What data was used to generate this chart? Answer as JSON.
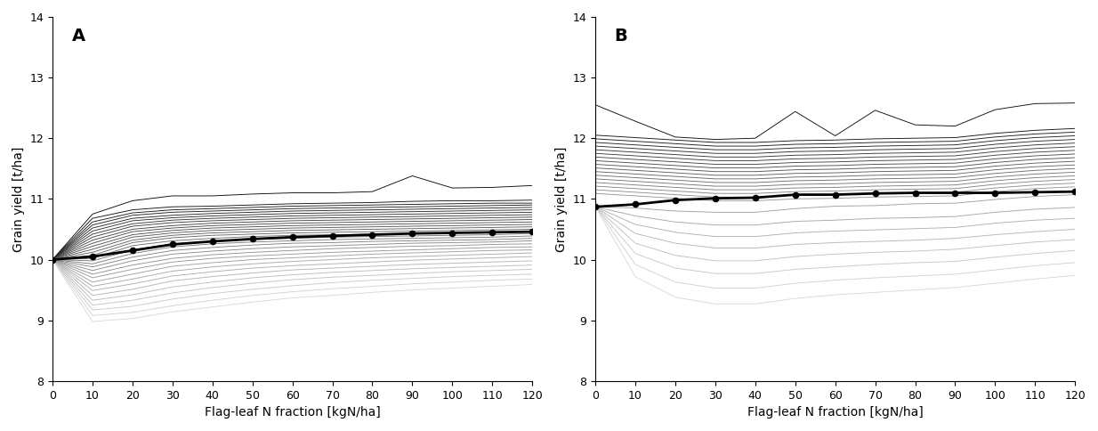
{
  "x": [
    0,
    10,
    20,
    30,
    40,
    50,
    60,
    70,
    80,
    90,
    100,
    110,
    120
  ],
  "panel_A_label": "A",
  "panel_B_label": "B",
  "xlabel": "Flag-leaf N fraction [kgN/ha]",
  "ylabel": "Grain yield [t/ha]",
  "ylim": [
    8,
    14
  ],
  "xlim": [
    0,
    120
  ],
  "yticks": [
    8,
    9,
    10,
    11,
    12,
    13,
    14
  ],
  "xticks": [
    0,
    10,
    20,
    30,
    40,
    50,
    60,
    70,
    80,
    90,
    100,
    110,
    120
  ],
  "background_color": "#ffffff",
  "panel_A_mean": [
    10.0,
    10.05,
    10.15,
    10.25,
    10.3,
    10.34,
    10.37,
    10.39,
    10.41,
    10.43,
    10.44,
    10.45,
    10.46
  ],
  "panel_A_lines": [
    [
      10.0,
      10.75,
      10.97,
      11.05,
      11.05,
      11.08,
      11.1,
      11.1,
      11.12,
      11.38,
      11.18,
      11.19,
      11.22
    ],
    [
      10.0,
      10.68,
      10.82,
      10.87,
      10.88,
      10.9,
      10.92,
      10.93,
      10.94,
      10.96,
      10.97,
      10.97,
      10.98
    ],
    [
      10.0,
      10.62,
      10.77,
      10.82,
      10.84,
      10.86,
      10.88,
      10.89,
      10.9,
      10.91,
      10.92,
      10.93,
      10.93
    ],
    [
      10.0,
      10.57,
      10.73,
      10.78,
      10.8,
      10.82,
      10.84,
      10.85,
      10.86,
      10.87,
      10.88,
      10.89,
      10.9
    ],
    [
      10.0,
      10.52,
      10.68,
      10.73,
      10.76,
      10.78,
      10.8,
      10.81,
      10.82,
      10.83,
      10.84,
      10.85,
      10.86
    ],
    [
      10.0,
      10.47,
      10.64,
      10.69,
      10.72,
      10.74,
      10.76,
      10.77,
      10.78,
      10.79,
      10.8,
      10.81,
      10.82
    ],
    [
      10.0,
      10.42,
      10.59,
      10.65,
      10.68,
      10.7,
      10.72,
      10.73,
      10.74,
      10.75,
      10.76,
      10.77,
      10.78
    ],
    [
      10.0,
      10.37,
      10.55,
      10.61,
      10.64,
      10.66,
      10.68,
      10.69,
      10.7,
      10.71,
      10.72,
      10.73,
      10.74
    ],
    [
      10.0,
      10.32,
      10.5,
      10.56,
      10.6,
      10.62,
      10.64,
      10.65,
      10.66,
      10.67,
      10.68,
      10.69,
      10.7
    ],
    [
      10.0,
      10.27,
      10.46,
      10.52,
      10.56,
      10.58,
      10.6,
      10.61,
      10.62,
      10.63,
      10.64,
      10.65,
      10.66
    ],
    [
      10.0,
      10.22,
      10.41,
      10.48,
      10.52,
      10.54,
      10.56,
      10.57,
      10.58,
      10.59,
      10.6,
      10.61,
      10.62
    ],
    [
      10.0,
      10.17,
      10.37,
      10.44,
      10.48,
      10.5,
      10.52,
      10.53,
      10.54,
      10.55,
      10.56,
      10.57,
      10.58
    ],
    [
      10.0,
      10.12,
      10.32,
      10.4,
      10.44,
      10.46,
      10.48,
      10.49,
      10.5,
      10.51,
      10.52,
      10.53,
      10.54
    ],
    [
      10.0,
      10.07,
      10.28,
      10.36,
      10.4,
      10.42,
      10.44,
      10.45,
      10.46,
      10.47,
      10.48,
      10.49,
      10.5
    ],
    [
      10.0,
      10.02,
      10.23,
      10.31,
      10.35,
      10.38,
      10.4,
      10.41,
      10.42,
      10.43,
      10.44,
      10.45,
      10.46
    ],
    [
      10.0,
      9.98,
      10.16,
      10.26,
      10.3,
      10.33,
      10.35,
      10.37,
      10.38,
      10.39,
      10.4,
      10.41,
      10.43
    ],
    [
      10.0,
      9.93,
      10.1,
      10.21,
      10.26,
      10.29,
      10.31,
      10.33,
      10.34,
      10.35,
      10.36,
      10.37,
      10.39
    ],
    [
      10.0,
      9.88,
      10.04,
      10.15,
      10.2,
      10.24,
      10.27,
      10.28,
      10.3,
      10.31,
      10.32,
      10.33,
      10.35
    ],
    [
      10.0,
      9.82,
      9.98,
      10.09,
      10.14,
      10.18,
      10.21,
      10.23,
      10.25,
      10.27,
      10.28,
      10.29,
      10.31
    ],
    [
      10.0,
      9.76,
      9.91,
      10.02,
      10.08,
      10.12,
      10.15,
      10.18,
      10.2,
      10.22,
      10.23,
      10.25,
      10.26
    ],
    [
      10.0,
      9.7,
      9.84,
      9.96,
      10.02,
      10.06,
      10.09,
      10.12,
      10.14,
      10.16,
      10.18,
      10.2,
      10.21
    ],
    [
      10.0,
      9.63,
      9.76,
      9.89,
      9.95,
      10.0,
      10.03,
      10.06,
      10.09,
      10.11,
      10.13,
      10.15,
      10.16
    ],
    [
      10.0,
      9.56,
      9.68,
      9.81,
      9.88,
      9.93,
      9.97,
      10.0,
      10.03,
      10.05,
      10.07,
      10.09,
      10.11
    ],
    [
      10.0,
      9.49,
      9.6,
      9.73,
      9.8,
      9.86,
      9.9,
      9.93,
      9.96,
      9.99,
      10.01,
      10.03,
      10.05
    ],
    [
      10.0,
      9.41,
      9.51,
      9.65,
      9.72,
      9.78,
      9.83,
      9.86,
      9.89,
      9.92,
      9.94,
      9.96,
      9.98
    ],
    [
      10.0,
      9.33,
      9.42,
      9.55,
      9.63,
      9.7,
      9.75,
      9.79,
      9.82,
      9.85,
      9.87,
      9.89,
      9.91
    ],
    [
      10.0,
      9.25,
      9.33,
      9.45,
      9.54,
      9.61,
      9.67,
      9.71,
      9.74,
      9.77,
      9.8,
      9.82,
      9.84
    ],
    [
      10.0,
      9.17,
      9.23,
      9.35,
      9.44,
      9.51,
      9.57,
      9.62,
      9.66,
      9.69,
      9.72,
      9.74,
      9.76
    ],
    [
      10.0,
      9.08,
      9.13,
      9.24,
      9.33,
      9.41,
      9.47,
      9.52,
      9.56,
      9.6,
      9.63,
      9.66,
      9.68
    ],
    [
      10.0,
      8.98,
      9.03,
      9.14,
      9.22,
      9.3,
      9.37,
      9.41,
      9.46,
      9.5,
      9.53,
      9.56,
      9.59
    ]
  ],
  "panel_B_mean": [
    10.87,
    10.91,
    10.98,
    11.01,
    11.02,
    11.07,
    11.07,
    11.09,
    11.1,
    11.1,
    11.1,
    11.11,
    11.12
  ],
  "panel_B_lines": [
    [
      12.55,
      12.28,
      12.02,
      11.98,
      12.0,
      12.44,
      12.04,
      12.46,
      12.22,
      12.2,
      12.47,
      12.57,
      12.58
    ],
    [
      12.05,
      12.01,
      11.97,
      11.93,
      11.93,
      11.96,
      11.97,
      11.99,
      12.0,
      12.01,
      12.08,
      12.13,
      12.16
    ],
    [
      11.99,
      11.95,
      11.91,
      11.87,
      11.87,
      11.9,
      11.91,
      11.93,
      11.94,
      11.95,
      12.02,
      12.07,
      12.1
    ],
    [
      11.93,
      11.89,
      11.85,
      11.81,
      11.81,
      11.84,
      11.85,
      11.87,
      11.88,
      11.89,
      11.96,
      12.01,
      12.04
    ],
    [
      11.87,
      11.83,
      11.79,
      11.75,
      11.75,
      11.78,
      11.79,
      11.81,
      11.82,
      11.83,
      11.9,
      11.95,
      11.98
    ],
    [
      11.81,
      11.77,
      11.73,
      11.69,
      11.69,
      11.72,
      11.73,
      11.75,
      11.76,
      11.77,
      11.84,
      11.89,
      11.92
    ],
    [
      11.75,
      11.71,
      11.67,
      11.63,
      11.63,
      11.66,
      11.67,
      11.69,
      11.7,
      11.71,
      11.78,
      11.83,
      11.86
    ],
    [
      11.69,
      11.65,
      11.61,
      11.57,
      11.57,
      11.6,
      11.61,
      11.63,
      11.64,
      11.65,
      11.72,
      11.77,
      11.8
    ],
    [
      11.63,
      11.59,
      11.55,
      11.51,
      11.51,
      11.54,
      11.55,
      11.57,
      11.58,
      11.59,
      11.66,
      11.71,
      11.74
    ],
    [
      11.57,
      11.53,
      11.49,
      11.45,
      11.45,
      11.48,
      11.49,
      11.51,
      11.52,
      11.53,
      11.6,
      11.65,
      11.68
    ],
    [
      11.51,
      11.47,
      11.43,
      11.39,
      11.39,
      11.42,
      11.43,
      11.45,
      11.46,
      11.47,
      11.54,
      11.59,
      11.62
    ],
    [
      11.45,
      11.41,
      11.37,
      11.33,
      11.33,
      11.36,
      11.37,
      11.39,
      11.4,
      11.41,
      11.48,
      11.53,
      11.56
    ],
    [
      11.39,
      11.35,
      11.31,
      11.27,
      11.27,
      11.3,
      11.31,
      11.33,
      11.34,
      11.35,
      11.42,
      11.47,
      11.5
    ],
    [
      11.33,
      11.29,
      11.25,
      11.21,
      11.21,
      11.24,
      11.25,
      11.27,
      11.28,
      11.29,
      11.36,
      11.41,
      11.44
    ],
    [
      11.27,
      11.23,
      11.19,
      11.15,
      11.15,
      11.18,
      11.19,
      11.21,
      11.22,
      11.23,
      11.3,
      11.35,
      11.38
    ],
    [
      11.21,
      11.17,
      11.13,
      11.09,
      11.09,
      11.12,
      11.13,
      11.15,
      11.16,
      11.17,
      11.24,
      11.29,
      11.32
    ],
    [
      11.15,
      11.11,
      11.07,
      11.03,
      11.03,
      11.06,
      11.07,
      11.09,
      11.1,
      11.11,
      11.18,
      11.23,
      11.26
    ],
    [
      11.09,
      11.05,
      11.01,
      10.97,
      10.97,
      11.0,
      11.01,
      11.03,
      11.04,
      11.05,
      11.12,
      11.17,
      11.2
    ],
    [
      10.87,
      10.85,
      10.8,
      10.78,
      10.78,
      10.84,
      10.88,
      10.89,
      10.92,
      10.93,
      10.99,
      11.04,
      11.07
    ],
    [
      10.87,
      10.72,
      10.62,
      10.57,
      10.57,
      10.63,
      10.65,
      10.68,
      10.69,
      10.71,
      10.78,
      10.83,
      10.86
    ],
    [
      10.87,
      10.58,
      10.45,
      10.38,
      10.38,
      10.44,
      10.47,
      10.49,
      10.51,
      10.53,
      10.6,
      10.65,
      10.68
    ],
    [
      10.87,
      10.43,
      10.27,
      10.19,
      10.19,
      10.25,
      10.28,
      10.3,
      10.32,
      10.35,
      10.41,
      10.46,
      10.5
    ],
    [
      10.87,
      10.27,
      10.07,
      9.98,
      9.98,
      10.05,
      10.09,
      10.12,
      10.14,
      10.17,
      10.23,
      10.29,
      10.33
    ],
    [
      10.87,
      10.1,
      9.86,
      9.77,
      9.77,
      9.84,
      9.88,
      9.92,
      9.95,
      9.97,
      10.04,
      10.1,
      10.15
    ],
    [
      10.87,
      9.92,
      9.63,
      9.53,
      9.53,
      9.61,
      9.66,
      9.7,
      9.73,
      9.76,
      9.83,
      9.9,
      9.95
    ],
    [
      10.87,
      9.72,
      9.38,
      9.27,
      9.27,
      9.36,
      9.42,
      9.46,
      9.5,
      9.54,
      9.61,
      9.68,
      9.74
    ]
  ]
}
